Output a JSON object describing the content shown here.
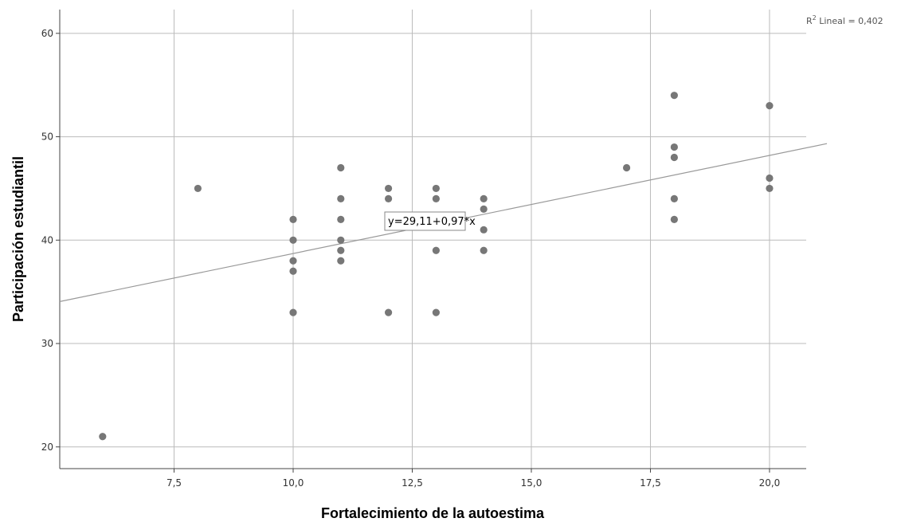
{
  "chart_data": {
    "type": "scatter",
    "title": "",
    "xlabel": "Fortalecimiento de la autoestima",
    "ylabel": "Participación estudiantil",
    "xlim": [
      5.1,
      20.77
    ],
    "ylim": [
      17.9,
      62.3
    ],
    "x_ticks": [
      7.5,
      10.0,
      12.5,
      15.0,
      17.5,
      20.0
    ],
    "x_tick_labels": [
      "7,5",
      "10,0",
      "12,5",
      "15,0",
      "17,5",
      "20,0"
    ],
    "y_ticks": [
      20,
      30,
      40,
      50,
      60
    ],
    "y_tick_labels": [
      "20",
      "30",
      "40",
      "50",
      "60"
    ],
    "grid": true,
    "point_color": "#777777",
    "line_color": "#999999",
    "points": [
      {
        "x": 6,
        "y": 21
      },
      {
        "x": 8,
        "y": 45
      },
      {
        "x": 10,
        "y": 42
      },
      {
        "x": 10,
        "y": 40
      },
      {
        "x": 10,
        "y": 38
      },
      {
        "x": 10,
        "y": 37
      },
      {
        "x": 10,
        "y": 33
      },
      {
        "x": 11,
        "y": 47
      },
      {
        "x": 11,
        "y": 44
      },
      {
        "x": 11,
        "y": 42
      },
      {
        "x": 11,
        "y": 40
      },
      {
        "x": 11,
        "y": 39
      },
      {
        "x": 11,
        "y": 38
      },
      {
        "x": 12,
        "y": 45
      },
      {
        "x": 12,
        "y": 44
      },
      {
        "x": 12,
        "y": 42
      },
      {
        "x": 12,
        "y": 33
      },
      {
        "x": 13,
        "y": 45
      },
      {
        "x": 13,
        "y": 44
      },
      {
        "x": 13,
        "y": 39
      },
      {
        "x": 13,
        "y": 33
      },
      {
        "x": 14,
        "y": 44
      },
      {
        "x": 14,
        "y": 43
      },
      {
        "x": 14,
        "y": 41
      },
      {
        "x": 14,
        "y": 39
      },
      {
        "x": 17,
        "y": 47
      },
      {
        "x": 18,
        "y": 54
      },
      {
        "x": 18,
        "y": 49
      },
      {
        "x": 18,
        "y": 48
      },
      {
        "x": 18,
        "y": 44
      },
      {
        "x": 18,
        "y": 42
      },
      {
        "x": 20,
        "y": 53
      },
      {
        "x": 20,
        "y": 46
      },
      {
        "x": 20,
        "y": 45
      }
    ],
    "fit_line": {
      "intercept": 29.11,
      "slope": 0.97
    },
    "equation_label": "y=29,11+0,97*x",
    "r2_label": "R",
    "r2_superscript": "2",
    "r2_text": " Lineal = 0,402"
  }
}
